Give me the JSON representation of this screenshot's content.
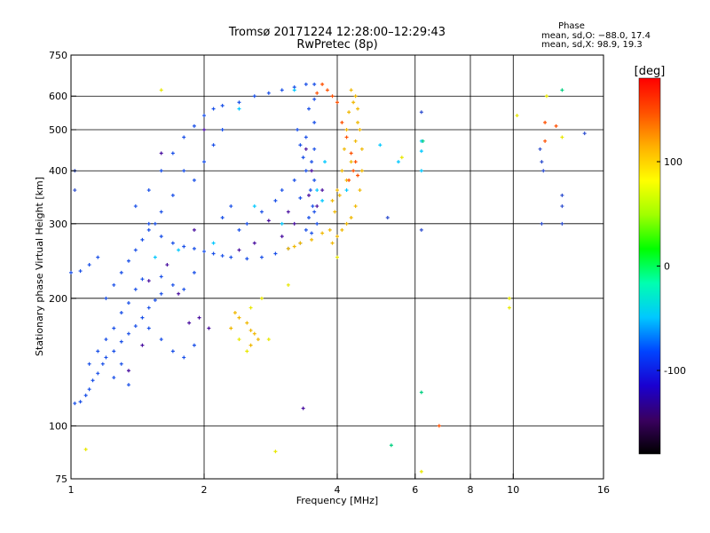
{
  "header": {
    "title_line1": "Tromsø 20171224 12:28:00–12:29:43",
    "title_line2": "RwPretec (8p)"
  },
  "phase_box": {
    "heading": "Phase",
    "line_o": "mean, sd,O: −88.0, 17.4",
    "line_x": "mean, sd,X:  98.9, 19.3"
  },
  "chart_data": {
    "type": "scatter",
    "xlabel": "Frequency [MHz]",
    "ylabel": "Stationary phase Virtual Height [km]",
    "x_scale": "log",
    "y_scale": "log",
    "xlim": [
      1,
      16
    ],
    "ylim": [
      75,
      750
    ],
    "x_ticks": [
      1,
      2,
      4,
      6,
      8,
      10,
      16
    ],
    "x_tick_labels": [
      "1",
      "2",
      "4",
      "6",
      "8",
      "10",
      "16"
    ],
    "y_ticks": [
      75,
      100,
      200,
      300,
      400,
      500,
      600,
      750
    ],
    "y_tick_labels": [
      "75",
      "100",
      "200",
      "300",
      "400",
      "500",
      "600",
      "750"
    ],
    "x_gridlines": [
      2,
      4,
      6,
      8,
      10
    ],
    "y_gridlines": [
      100,
      200,
      300,
      400,
      500,
      600
    ],
    "grid": true,
    "colorbar": {
      "label": "[deg]",
      "range": [
        -180,
        180
      ],
      "ticks": [
        100,
        0,
        -100
      ],
      "tick_labels": [
        "100",
        "0",
        "-100"
      ],
      "colors": [
        "#000000",
        "#3a0060",
        "#1a00d0",
        "#0044ff",
        "#00c8ff",
        "#00ffb0",
        "#00ff00",
        "#a0ff00",
        "#ffff00",
        "#ffb000",
        "#ff5000",
        "#ff0000"
      ]
    },
    "series": [
      {
        "color": "#1a50e8",
        "mark": "+",
        "points": [
          [
            1.02,
            113
          ],
          [
            1.05,
            114
          ],
          [
            1.08,
            118
          ],
          [
            1.1,
            122
          ],
          [
            1.12,
            128
          ],
          [
            1.15,
            133
          ],
          [
            1.18,
            140
          ],
          [
            1.2,
            145
          ],
          [
            1.25,
            150
          ],
          [
            1.3,
            158
          ],
          [
            1.35,
            165
          ],
          [
            1.4,
            172
          ],
          [
            1.45,
            180
          ],
          [
            1.5,
            190
          ],
          [
            1.55,
            198
          ],
          [
            1.6,
            205
          ],
          [
            1.1,
            140
          ],
          [
            1.15,
            150
          ],
          [
            1.2,
            160
          ],
          [
            1.25,
            170
          ],
          [
            1.3,
            185
          ],
          [
            1.35,
            195
          ],
          [
            1.4,
            210
          ],
          [
            1.45,
            222
          ],
          [
            1.2,
            200
          ],
          [
            1.25,
            215
          ],
          [
            1.3,
            230
          ],
          [
            1.35,
            245
          ],
          [
            1.4,
            260
          ],
          [
            1.45,
            275
          ],
          [
            1.5,
            290
          ],
          [
            1.55,
            300
          ],
          [
            1.6,
            280
          ],
          [
            1.7,
            270
          ],
          [
            1.8,
            265
          ],
          [
            1.9,
            262
          ],
          [
            2.0,
            258
          ],
          [
            2.1,
            255
          ],
          [
            2.2,
            252
          ],
          [
            2.3,
            250
          ],
          [
            2.5,
            248
          ],
          [
            2.7,
            250
          ],
          [
            2.9,
            255
          ],
          [
            3.1,
            262
          ],
          [
            3.3,
            270
          ],
          [
            3.5,
            285
          ],
          [
            3.55,
            320
          ],
          [
            3.55,
            380
          ],
          [
            3.55,
            450
          ],
          [
            3.55,
            520
          ],
          [
            3.55,
            590
          ],
          [
            3.45,
            560
          ],
          [
            3.4,
            480
          ],
          [
            3.5,
            420
          ],
          [
            3.48,
            360
          ],
          [
            3.52,
            330
          ],
          [
            1.4,
            330
          ],
          [
            1.5,
            360
          ],
          [
            1.6,
            400
          ],
          [
            1.7,
            440
          ],
          [
            1.8,
            480
          ],
          [
            1.9,
            510
          ],
          [
            2.0,
            540
          ],
          [
            2.1,
            560
          ],
          [
            2.2,
            570
          ],
          [
            2.4,
            580
          ],
          [
            2.6,
            600
          ],
          [
            2.8,
            610
          ],
          [
            3.0,
            620
          ],
          [
            3.2,
            630
          ],
          [
            3.4,
            640
          ],
          [
            3.55,
            640
          ],
          [
            1.0,
            230
          ],
          [
            1.05,
            232
          ],
          [
            1.1,
            240
          ],
          [
            1.15,
            250
          ],
          [
            1.6,
            225
          ],
          [
            1.7,
            215
          ],
          [
            1.8,
            210
          ],
          [
            1.9,
            230
          ],
          [
            1.5,
            170
          ],
          [
            1.6,
            160
          ],
          [
            1.7,
            150
          ],
          [
            1.8,
            145
          ],
          [
            1.9,
            155
          ],
          [
            1.3,
            140
          ],
          [
            1.25,
            130
          ],
          [
            1.35,
            125
          ],
          [
            2.5,
            300
          ],
          [
            2.7,
            320
          ],
          [
            2.9,
            340
          ],
          [
            3.0,
            360
          ],
          [
            3.2,
            380
          ],
          [
            2.3,
            330
          ],
          [
            2.2,
            310
          ],
          [
            2.4,
            290
          ],
          [
            1.8,
            400
          ],
          [
            2.0,
            420
          ],
          [
            1.9,
            380
          ],
          [
            2.1,
            460
          ],
          [
            2.2,
            500
          ],
          [
            1.7,
            350
          ],
          [
            1.6,
            320
          ],
          [
            1.5,
            300
          ],
          [
            3.25,
            500
          ],
          [
            3.3,
            460
          ],
          [
            3.35,
            430
          ],
          [
            3.4,
            400
          ],
          [
            3.3,
            345
          ],
          [
            3.45,
            310
          ],
          [
            3.6,
            300
          ],
          [
            3.4,
            290
          ]
        ]
      },
      {
        "color": "#4a10a0",
        "mark": "+",
        "points": [
          [
            1.5,
            220
          ],
          [
            1.65,
            240
          ],
          [
            1.75,
            205
          ],
          [
            1.85,
            175
          ],
          [
            1.95,
            180
          ],
          [
            2.05,
            170
          ],
          [
            1.45,
            155
          ],
          [
            1.35,
            135
          ],
          [
            2.6,
            270
          ],
          [
            3.0,
            280
          ],
          [
            3.2,
            300
          ],
          [
            3.45,
            350
          ],
          [
            3.5,
            400
          ],
          [
            3.4,
            450
          ],
          [
            3.6,
            330
          ],
          [
            3.7,
            360
          ],
          [
            1.9,
            290
          ],
          [
            2.4,
            260
          ],
          [
            2.8,
            305
          ],
          [
            3.1,
            320
          ],
          [
            1.6,
            440
          ],
          [
            2.0,
            500
          ],
          [
            3.35,
            110
          ]
        ]
      },
      {
        "color": "#00c8ff",
        "mark": "+",
        "points": [
          [
            1.55,
            250
          ],
          [
            1.75,
            260
          ],
          [
            2.1,
            270
          ],
          [
            2.6,
            330
          ],
          [
            3.0,
            300
          ],
          [
            3.6,
            360
          ],
          [
            3.7,
            340
          ],
          [
            3.75,
            420
          ],
          [
            4.2,
            360
          ],
          [
            5.0,
            460
          ],
          [
            5.5,
            420
          ],
          [
            6.2,
            470
          ],
          [
            6.2,
            445
          ],
          [
            6.2,
            400
          ],
          [
            3.2,
            620
          ],
          [
            2.4,
            560
          ]
        ]
      },
      {
        "color": "#f0b800",
        "mark": "+",
        "points": [
          [
            3.9,
            270
          ],
          [
            4.0,
            280
          ],
          [
            4.1,
            290
          ],
          [
            4.2,
            300
          ],
          [
            4.3,
            310
          ],
          [
            4.4,
            330
          ],
          [
            4.5,
            360
          ],
          [
            4.55,
            400
          ],
          [
            4.55,
            450
          ],
          [
            4.5,
            500
          ],
          [
            4.45,
            560
          ],
          [
            4.4,
            600
          ],
          [
            4.3,
            620
          ],
          [
            4.2,
            500
          ],
          [
            4.15,
            450
          ],
          [
            4.1,
            400
          ],
          [
            4.05,
            350
          ],
          [
            3.95,
            320
          ],
          [
            3.85,
            290
          ],
          [
            3.7,
            285
          ],
          [
            3.5,
            275
          ],
          [
            3.3,
            270
          ],
          [
            3.2,
            265
          ],
          [
            3.1,
            262
          ],
          [
            4.25,
            550
          ],
          [
            4.35,
            580
          ],
          [
            4.3,
            420
          ],
          [
            4.2,
            380
          ],
          [
            4.0,
            360
          ],
          [
            3.9,
            340
          ],
          [
            4.4,
            470
          ],
          [
            4.45,
            520
          ],
          [
            2.4,
            180
          ],
          [
            2.5,
            175
          ],
          [
            2.55,
            168
          ],
          [
            2.6,
            165
          ],
          [
            2.65,
            160
          ],
          [
            2.35,
            185
          ],
          [
            2.3,
            170
          ],
          [
            2.55,
            155
          ]
        ]
      },
      {
        "color": "#ff5000",
        "mark": "+",
        "points": [
          [
            3.8,
            620
          ],
          [
            3.9,
            600
          ],
          [
            4.0,
            580
          ],
          [
            4.1,
            520
          ],
          [
            4.2,
            480
          ],
          [
            4.3,
            440
          ],
          [
            4.35,
            400
          ],
          [
            4.25,
            380
          ],
          [
            3.7,
            640
          ],
          [
            3.6,
            610
          ],
          [
            4.4,
            420
          ],
          [
            4.45,
            390
          ],
          [
            11.8,
            520
          ],
          [
            11.8,
            470
          ],
          [
            12.5,
            510
          ],
          [
            6.8,
            100
          ]
        ]
      },
      {
        "color": "#e8e800",
        "mark": "+",
        "points": [
          [
            2.4,
            160
          ],
          [
            2.5,
            150
          ],
          [
            2.55,
            190
          ],
          [
            2.7,
            200
          ],
          [
            2.8,
            160
          ],
          [
            3.1,
            215
          ],
          [
            4.0,
            250
          ],
          [
            5.6,
            430
          ],
          [
            9.8,
            200
          ],
          [
            9.8,
            190
          ],
          [
            10.2,
            540
          ],
          [
            11.9,
            600
          ],
          [
            12.9,
            480
          ],
          [
            1.6,
            620
          ],
          [
            1.08,
            88
          ],
          [
            2.9,
            87
          ],
          [
            6.2,
            78
          ]
        ]
      },
      {
        "color": "#3050d0",
        "mark": "+",
        "points": [
          [
            11.5,
            450
          ],
          [
            11.6,
            420
          ],
          [
            11.7,
            400
          ],
          [
            12.9,
            330
          ],
          [
            12.9,
            350
          ],
          [
            12.9,
            300
          ],
          [
            11.6,
            300
          ],
          [
            14.5,
            490
          ],
          [
            6.2,
            550
          ],
          [
            6.2,
            290
          ],
          [
            5.2,
            310
          ],
          [
            1.02,
            360
          ],
          [
            1.02,
            400
          ]
        ]
      },
      {
        "color": "#00d080",
        "mark": "+",
        "points": [
          [
            5.3,
            90
          ],
          [
            6.2,
            120
          ],
          [
            6.25,
            470
          ],
          [
            12.9,
            620
          ]
        ]
      }
    ]
  }
}
